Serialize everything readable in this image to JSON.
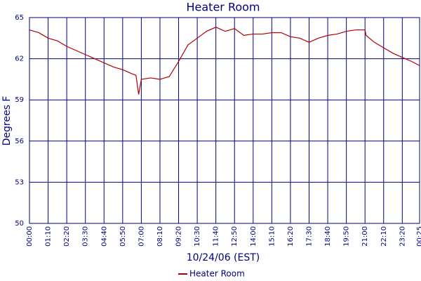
{
  "chart_data": {
    "type": "line",
    "title": "Heater Room",
    "xlabel": "10/24/06 (EST)",
    "ylabel": "Degrees F",
    "x": [
      0,
      35,
      70,
      105,
      140,
      175,
      210,
      245,
      280,
      315,
      350,
      385,
      400,
      410,
      420,
      455,
      490,
      525,
      560,
      595,
      630,
      665,
      700,
      735,
      770,
      805,
      840,
      875,
      910,
      945,
      980,
      1015,
      1050,
      1085,
      1120,
      1155,
      1190,
      1225,
      1260,
      1264,
      1295,
      1330,
      1365,
      1400,
      1435,
      1465
    ],
    "series": [
      {
        "name": "Heater Room",
        "color": "#b00000",
        "values": [
          64.1,
          63.9,
          63.5,
          63.3,
          62.9,
          62.6,
          62.3,
          62.0,
          61.7,
          61.4,
          61.2,
          60.9,
          60.8,
          59.4,
          60.5,
          60.6,
          60.5,
          60.7,
          61.8,
          63.0,
          63.5,
          64.0,
          64.3,
          64.0,
          64.2,
          63.7,
          63.8,
          63.8,
          63.9,
          63.9,
          63.6,
          63.5,
          63.2,
          63.5,
          63.7,
          63.8,
          64.0,
          64.1,
          64.1,
          63.7,
          63.2,
          62.8,
          62.4,
          62.1,
          61.8,
          61.5
        ]
      }
    ],
    "xlim": [
      0,
      1465
    ],
    "xticks": [
      {
        "value": 0,
        "label": "00:00"
      },
      {
        "value": 70,
        "label": "01:10"
      },
      {
        "value": 140,
        "label": "02:20"
      },
      {
        "value": 210,
        "label": "03:30"
      },
      {
        "value": 280,
        "label": "04:40"
      },
      {
        "value": 350,
        "label": "05:50"
      },
      {
        "value": 420,
        "label": "07:00"
      },
      {
        "value": 490,
        "label": "08:10"
      },
      {
        "value": 560,
        "label": "09:20"
      },
      {
        "value": 630,
        "label": "10:30"
      },
      {
        "value": 700,
        "label": "11:40"
      },
      {
        "value": 770,
        "label": "12:50"
      },
      {
        "value": 840,
        "label": "14:00"
      },
      {
        "value": 910,
        "label": "15:10"
      },
      {
        "value": 980,
        "label": "16:20"
      },
      {
        "value": 1050,
        "label": "17:30"
      },
      {
        "value": 1120,
        "label": "18:40"
      },
      {
        "value": 1190,
        "label": "19:50"
      },
      {
        "value": 1260,
        "label": "21:00"
      },
      {
        "value": 1330,
        "label": "22:10"
      },
      {
        "value": 1400,
        "label": "23:20"
      },
      {
        "value": 1465,
        "label": "00:25"
      }
    ],
    "ylim": [
      50,
      65
    ],
    "yticks": [
      50,
      53,
      56,
      59,
      62,
      65
    ],
    "grid": true,
    "grid_color": "#000080",
    "legend": "bottom"
  }
}
